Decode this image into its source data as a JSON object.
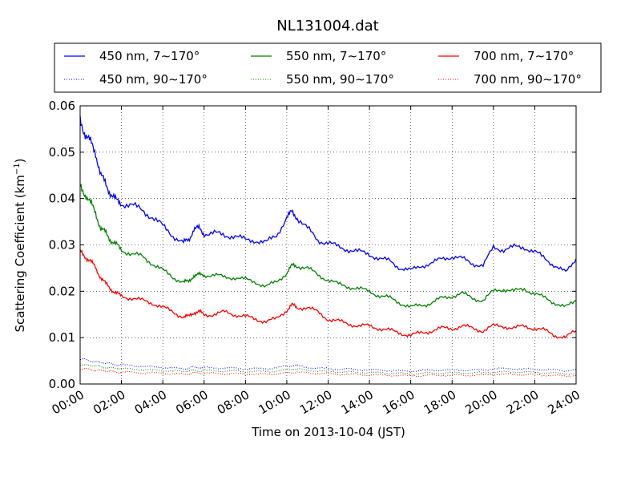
{
  "chart_data": {
    "type": "line",
    "title": "NL131004.dat",
    "xlabel": "Time on 2013-10-04 (JST)",
    "ylabel": "Scattering Coefficient (km⁻¹)",
    "ylabel_main": "Scattering Coefficient (km",
    "ylabel_sup": "−1",
    "ylabel_close": ")",
    "x_unit": "hours",
    "xlim": [
      0,
      24
    ],
    "ylim": [
      0,
      0.06
    ],
    "grid": true,
    "legend_position": "top, above plot",
    "x_ticks": [
      {
        "value": 0,
        "label": "00:00"
      },
      {
        "value": 2,
        "label": "02:00"
      },
      {
        "value": 4,
        "label": "04:00"
      },
      {
        "value": 6,
        "label": "06:00"
      },
      {
        "value": 8,
        "label": "08:00"
      },
      {
        "value": 10,
        "label": "10:00"
      },
      {
        "value": 12,
        "label": "12:00"
      },
      {
        "value": 14,
        "label": "14:00"
      },
      {
        "value": 16,
        "label": "16:00"
      },
      {
        "value": 18,
        "label": "18:00"
      },
      {
        "value": 20,
        "label": "20:00"
      },
      {
        "value": 22,
        "label": "22:00"
      },
      {
        "value": 24,
        "label": "24:00"
      }
    ],
    "y_ticks": [
      {
        "value": 0,
        "label": "0.00"
      },
      {
        "value": 0.01,
        "label": "0.01"
      },
      {
        "value": 0.02,
        "label": "0.02"
      },
      {
        "value": 0.03,
        "label": "0.03"
      },
      {
        "value": 0.04,
        "label": "0.04"
      },
      {
        "value": 0.05,
        "label": "0.05"
      },
      {
        "value": 0.06,
        "label": "0.06"
      }
    ],
    "x": [
      0,
      0.25,
      0.5,
      0.75,
      1,
      1.25,
      1.5,
      1.75,
      2,
      2.5,
      3,
      3.5,
      4,
      4.5,
      5,
      5.25,
      5.5,
      5.75,
      6,
      6.5,
      7,
      7.5,
      8,
      8.5,
      9,
      9.5,
      10,
      10.25,
      10.5,
      11,
      11.5,
      12,
      12.5,
      13,
      13.5,
      14,
      14.5,
      15,
      15.5,
      16,
      16.5,
      17,
      17.5,
      18,
      18.5,
      19,
      19.5,
      20,
      20.5,
      21,
      21.5,
      22,
      22.5,
      23,
      23.5,
      24
    ],
    "series": [
      {
        "name": "450 nm, 7∼170°",
        "color": "#0000ff",
        "style": "solid",
        "values": [
          0.057,
          0.054,
          0.052,
          0.05,
          0.045,
          0.043,
          0.041,
          0.0395,
          0.039,
          0.0385,
          0.0375,
          0.036,
          0.034,
          0.032,
          0.0305,
          0.031,
          0.0335,
          0.0335,
          0.0325,
          0.0325,
          0.032,
          0.032,
          0.031,
          0.031,
          0.0305,
          0.032,
          0.036,
          0.037,
          0.036,
          0.0335,
          0.031,
          0.0305,
          0.0295,
          0.029,
          0.0285,
          0.028,
          0.027,
          0.0265,
          0.025,
          0.0245,
          0.0255,
          0.026,
          0.027,
          0.0275,
          0.027,
          0.026,
          0.0255,
          0.0295,
          0.029,
          0.0295,
          0.0295,
          0.0285,
          0.027,
          0.0255,
          0.024,
          0.027
        ]
      },
      {
        "name": "450 nm, 90∼170°",
        "color": "#0000ff",
        "style": "dotted",
        "values": [
          0.0053,
          0.0052,
          0.005,
          0.0048,
          0.0046,
          0.0045,
          0.0044,
          0.0042,
          0.0041,
          0.004,
          0.0038,
          0.0037,
          0.0036,
          0.0034,
          0.0033,
          0.0034,
          0.0036,
          0.0036,
          0.0035,
          0.0035,
          0.0034,
          0.0034,
          0.0033,
          0.0033,
          0.0033,
          0.0035,
          0.0038,
          0.004,
          0.0039,
          0.0036,
          0.0034,
          0.0033,
          0.0032,
          0.0032,
          0.0031,
          0.003,
          0.003,
          0.0029,
          0.0028,
          0.0028,
          0.0029,
          0.003,
          0.003,
          0.003,
          0.003,
          0.003,
          0.003,
          0.0033,
          0.0033,
          0.0033,
          0.0032,
          0.0032,
          0.0031,
          0.003,
          0.0029,
          0.0031
        ]
      },
      {
        "name": "550 nm, 7∼170°",
        "color": "#008000",
        "style": "solid",
        "values": [
          0.0425,
          0.041,
          0.039,
          0.037,
          0.0335,
          0.0325,
          0.031,
          0.03,
          0.029,
          0.028,
          0.0275,
          0.026,
          0.0245,
          0.023,
          0.022,
          0.022,
          0.0235,
          0.0235,
          0.0235,
          0.0235,
          0.023,
          0.023,
          0.0225,
          0.022,
          0.021,
          0.022,
          0.024,
          0.0255,
          0.0255,
          0.025,
          0.0235,
          0.0225,
          0.0215,
          0.021,
          0.0205,
          0.02,
          0.019,
          0.0185,
          0.0175,
          0.0165,
          0.017,
          0.0175,
          0.0185,
          0.019,
          0.0195,
          0.0185,
          0.018,
          0.02,
          0.0205,
          0.02,
          0.0205,
          0.0195,
          0.0185,
          0.0175,
          0.0165,
          0.018
        ]
      },
      {
        "name": "550 nm, 90∼170°",
        "color": "#008000",
        "style": "dotted",
        "values": [
          0.0042,
          0.0041,
          0.004,
          0.0039,
          0.0037,
          0.0036,
          0.0035,
          0.0034,
          0.0033,
          0.0032,
          0.0031,
          0.003,
          0.0029,
          0.0028,
          0.0027,
          0.0028,
          0.0029,
          0.0029,
          0.0029,
          0.0029,
          0.0028,
          0.0028,
          0.0027,
          0.0027,
          0.0027,
          0.0028,
          0.003,
          0.0032,
          0.0032,
          0.003,
          0.0028,
          0.0027,
          0.0026,
          0.0026,
          0.0025,
          0.0025,
          0.0024,
          0.0024,
          0.0023,
          0.0022,
          0.0023,
          0.0023,
          0.0024,
          0.0024,
          0.0024,
          0.0024,
          0.0024,
          0.0026,
          0.0026,
          0.0026,
          0.0026,
          0.0025,
          0.0024,
          0.0023,
          0.0022,
          0.0024
        ]
      },
      {
        "name": "700 nm, 7∼170°",
        "color": "#ff0000",
        "style": "solid",
        "values": [
          0.0285,
          0.0275,
          0.0265,
          0.025,
          0.023,
          0.0215,
          0.0205,
          0.0195,
          0.019,
          0.0185,
          0.018,
          0.0175,
          0.0165,
          0.0155,
          0.0145,
          0.0145,
          0.0155,
          0.0155,
          0.015,
          0.015,
          0.0155,
          0.015,
          0.0145,
          0.014,
          0.0135,
          0.014,
          0.016,
          0.017,
          0.0165,
          0.0165,
          0.0155,
          0.014,
          0.0135,
          0.013,
          0.0125,
          0.0125,
          0.012,
          0.0115,
          0.011,
          0.0105,
          0.011,
          0.0115,
          0.012,
          0.012,
          0.0125,
          0.012,
          0.0115,
          0.0125,
          0.0125,
          0.012,
          0.0125,
          0.012,
          0.0115,
          0.0105,
          0.01,
          0.0115
        ]
      },
      {
        "name": "700 nm, 90∼170°",
        "color": "#ff0000",
        "style": "dotted",
        "values": [
          0.0033,
          0.0032,
          0.0031,
          0.003,
          0.0029,
          0.0028,
          0.0027,
          0.0026,
          0.0026,
          0.0025,
          0.0024,
          0.0024,
          0.0023,
          0.0022,
          0.0021,
          0.0022,
          0.0023,
          0.0023,
          0.0023,
          0.0023,
          0.0022,
          0.0022,
          0.0022,
          0.0021,
          0.0021,
          0.0022,
          0.0024,
          0.0025,
          0.0025,
          0.0024,
          0.0023,
          0.0022,
          0.0021,
          0.0021,
          0.002,
          0.002,
          0.0019,
          0.0019,
          0.0018,
          0.0018,
          0.0018,
          0.0019,
          0.0019,
          0.0019,
          0.0019,
          0.0019,
          0.0019,
          0.0021,
          0.0021,
          0.0021,
          0.002,
          0.002,
          0.0019,
          0.0018,
          0.0017,
          0.0019
        ]
      }
    ]
  }
}
